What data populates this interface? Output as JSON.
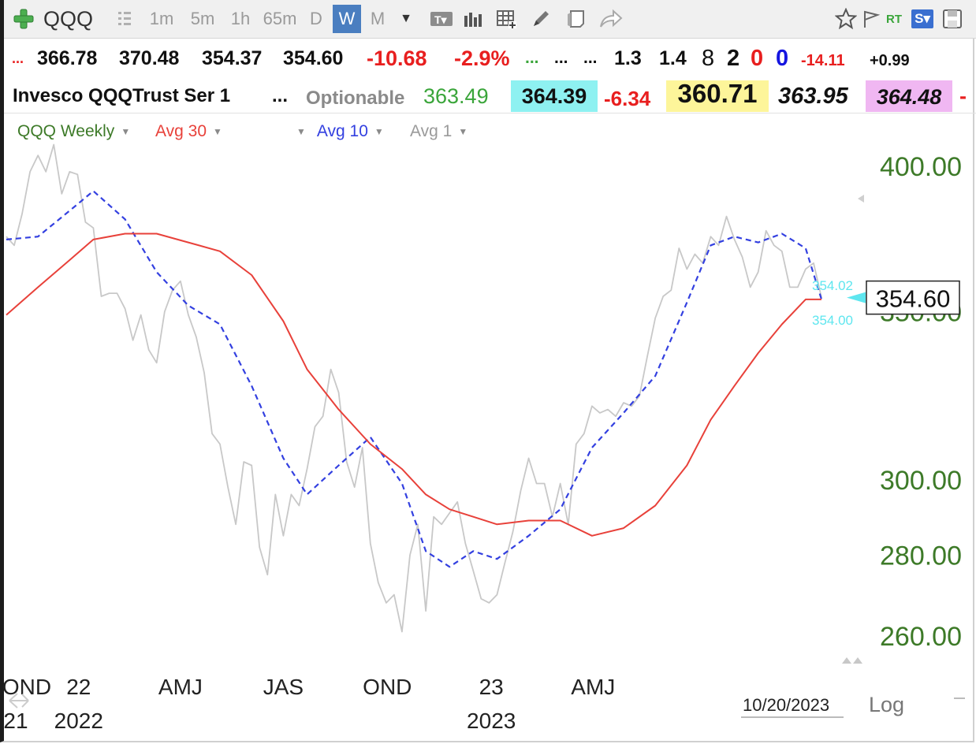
{
  "toolbar": {
    "symbol": "QQQ",
    "timeframes": [
      "1m",
      "5m",
      "1h",
      "65m",
      "D",
      "W",
      "M"
    ],
    "active_timeframe": "W",
    "rt_label": "RT",
    "s_label": "S▾"
  },
  "quote_row": {
    "lead": "...",
    "open": "366.78",
    "high": "370.48",
    "low": "354.37",
    "close": "354.60",
    "change": "-10.68",
    "pct": "-2.9%",
    "dots1": "...",
    "dots2": "...",
    "dots3": "...",
    "v1": "1.3",
    "v2": "1.4",
    "n1": "8",
    "n2": "2",
    "n3": "0",
    "n4": "0",
    "d1": "-14.11",
    "d2": "+0.99"
  },
  "info_row": {
    "name": "Invesco QQQTrust Ser 1",
    "dots": "...",
    "optionable": "Optionable",
    "p1": "363.49",
    "p2": "364.39",
    "p3": "-6.34",
    "p4": "360.71",
    "p5": "363.95",
    "p6": "364.48",
    "p7": "-"
  },
  "legend": {
    "weekly": "QQQ Weekly",
    "avg30": "Avg 30",
    "avg10": "Avg 10",
    "avg1": "Avg 1"
  },
  "colors": {
    "price": "#c8c8c8",
    "avg30": "#e8413a",
    "avg10": "#3340e0",
    "axis_green": "#3d7a28",
    "red": "#e81f1f",
    "cyan_bg": "#8ef1f1",
    "yellow_bg": "#fdf59a",
    "pink_bg": "#f0b7f2"
  },
  "chart_data": {
    "type": "line",
    "y_ticks": [
      "400.00",
      "350.00",
      "300.00",
      "280.00",
      "260.00"
    ],
    "y_tick_values": [
      400,
      350,
      300,
      280,
      260
    ],
    "ylim": [
      252,
      415
    ],
    "scale": "log",
    "x_labels_top": [
      "OND",
      "22",
      "AMJ",
      "JAS",
      "OND",
      "23",
      "AMJ"
    ],
    "x_labels_bottom": [
      "21",
      "2022",
      "2023"
    ],
    "x_tick_dates": [
      "2021-11-01",
      "2022-01-01",
      "2022-04-01",
      "2022-07-01",
      "2022-10-01",
      "2023-01-01",
      "2023-04-01"
    ],
    "date_footer": "10/20/2023",
    "log_label": "Log",
    "last_price": "354.60",
    "avg10_marker": "354.02",
    "avg30_marker": "354.00",
    "series": [
      {
        "name": "QQQ Weekly",
        "values": [
          [
            "2021-10-29",
            375
          ],
          [
            "2021-11-05",
            372
          ],
          [
            "2021-11-12",
            383
          ],
          [
            "2021-11-19",
            398
          ],
          [
            "2021-11-26",
            404
          ],
          [
            "2021-12-03",
            398
          ],
          [
            "2021-12-10",
            408
          ],
          [
            "2021-12-17",
            390
          ],
          [
            "2021-12-24",
            398
          ],
          [
            "2021-12-31",
            397
          ],
          [
            "2022-01-07",
            380
          ],
          [
            "2022-01-14",
            378
          ],
          [
            "2022-01-21",
            355
          ],
          [
            "2022-01-28",
            356
          ],
          [
            "2022-02-04",
            356
          ],
          [
            "2022-02-11",
            351
          ],
          [
            "2022-02-18",
            341
          ],
          [
            "2022-02-25",
            349
          ],
          [
            "2022-03-04",
            338
          ],
          [
            "2022-03-11",
            334
          ],
          [
            "2022-03-18",
            350
          ],
          [
            "2022-03-25",
            357
          ],
          [
            "2022-04-01",
            360
          ],
          [
            "2022-04-08",
            349
          ],
          [
            "2022-04-15",
            342
          ],
          [
            "2022-04-22",
            331
          ],
          [
            "2022-04-29",
            313
          ],
          [
            "2022-05-06",
            310
          ],
          [
            "2022-05-13",
            298
          ],
          [
            "2022-05-20",
            288
          ],
          [
            "2022-05-27",
            305
          ],
          [
            "2022-06-03",
            304
          ],
          [
            "2022-06-10",
            282
          ],
          [
            "2022-06-17",
            275
          ],
          [
            "2022-06-24",
            296
          ],
          [
            "2022-07-01",
            285
          ],
          [
            "2022-07-08",
            296
          ],
          [
            "2022-07-15",
            293
          ],
          [
            "2022-07-22",
            303
          ],
          [
            "2022-07-29",
            315
          ],
          [
            "2022-08-05",
            318
          ],
          [
            "2022-08-12",
            332
          ],
          [
            "2022-08-19",
            325
          ],
          [
            "2022-08-26",
            305
          ],
          [
            "2022-09-02",
            298
          ],
          [
            "2022-09-09",
            309
          ],
          [
            "2022-09-16",
            283
          ],
          [
            "2022-09-23",
            273
          ],
          [
            "2022-09-30",
            268
          ],
          [
            "2022-10-07",
            270
          ],
          [
            "2022-10-14",
            261
          ],
          [
            "2022-10-21",
            280
          ],
          [
            "2022-10-28",
            288
          ],
          [
            "2022-11-04",
            266
          ],
          [
            "2022-11-11",
            290
          ],
          [
            "2022-11-18",
            288
          ],
          [
            "2022-11-25",
            291
          ],
          [
            "2022-12-02",
            294
          ],
          [
            "2022-12-09",
            283
          ],
          [
            "2022-12-16",
            276
          ],
          [
            "2022-12-23",
            269
          ],
          [
            "2022-12-30",
            268
          ],
          [
            "2023-01-06",
            270
          ],
          [
            "2023-01-13",
            278
          ],
          [
            "2023-01-20",
            286
          ],
          [
            "2023-01-27",
            297
          ],
          [
            "2023-02-03",
            306
          ],
          [
            "2023-02-10",
            299
          ],
          [
            "2023-02-17",
            299
          ],
          [
            "2023-02-24",
            290
          ],
          [
            "2023-03-03",
            299
          ],
          [
            "2023-03-10",
            288
          ],
          [
            "2023-03-17",
            310
          ],
          [
            "2023-03-24",
            313
          ],
          [
            "2023-03-31",
            321
          ],
          [
            "2023-04-07",
            319
          ],
          [
            "2023-04-14",
            320
          ],
          [
            "2023-04-21",
            318
          ],
          [
            "2023-04-28",
            322
          ],
          [
            "2023-05-05",
            321
          ],
          [
            "2023-05-12",
            324
          ],
          [
            "2023-05-19",
            336
          ],
          [
            "2023-05-26",
            348
          ],
          [
            "2023-06-02",
            355
          ],
          [
            "2023-06-09",
            357
          ],
          [
            "2023-06-16",
            371
          ],
          [
            "2023-06-23",
            364
          ],
          [
            "2023-06-30",
            369
          ],
          [
            "2023-07-07",
            366
          ],
          [
            "2023-07-14",
            375
          ],
          [
            "2023-07-21",
            372
          ],
          [
            "2023-07-28",
            382
          ],
          [
            "2023-08-04",
            374
          ],
          [
            "2023-08-11",
            368
          ],
          [
            "2023-08-18",
            358
          ],
          [
            "2023-08-25",
            363
          ],
          [
            "2023-09-01",
            377
          ],
          [
            "2023-09-08",
            372
          ],
          [
            "2023-09-15",
            370
          ],
          [
            "2023-09-22",
            358
          ],
          [
            "2023-09-29",
            358
          ],
          [
            "2023-10-06",
            364
          ],
          [
            "2023-10-13",
            366
          ],
          [
            "2023-10-20",
            354.6
          ]
        ]
      },
      {
        "name": "Avg 10",
        "values": [
          [
            "2021-10-29",
            374
          ],
          [
            "2021-11-26",
            375
          ],
          [
            "2021-12-24",
            384
          ],
          [
            "2022-01-14",
            391
          ],
          [
            "2022-02-11",
            381
          ],
          [
            "2022-03-11",
            363
          ],
          [
            "2022-04-08",
            352
          ],
          [
            "2022-05-06",
            346
          ],
          [
            "2022-06-03",
            327
          ],
          [
            "2022-07-01",
            306
          ],
          [
            "2022-07-22",
            296
          ],
          [
            "2022-08-19",
            304
          ],
          [
            "2022-09-16",
            312
          ],
          [
            "2022-10-14",
            299
          ],
          [
            "2022-11-04",
            281
          ],
          [
            "2022-11-25",
            277
          ],
          [
            "2022-12-16",
            281
          ],
          [
            "2023-01-06",
            279
          ],
          [
            "2023-02-03",
            285
          ],
          [
            "2023-03-03",
            292
          ],
          [
            "2023-03-31",
            309
          ],
          [
            "2023-04-28",
            319
          ],
          [
            "2023-05-26",
            330
          ],
          [
            "2023-06-23",
            353
          ],
          [
            "2023-07-14",
            372
          ],
          [
            "2023-08-04",
            375
          ],
          [
            "2023-08-25",
            373
          ],
          [
            "2023-09-15",
            376
          ],
          [
            "2023-10-06",
            371
          ],
          [
            "2023-10-20",
            354.02
          ]
        ]
      },
      {
        "name": "Avg 30",
        "values": [
          [
            "2021-10-29",
            349
          ],
          [
            "2021-11-26",
            358
          ],
          [
            "2021-12-24",
            367
          ],
          [
            "2022-01-14",
            374
          ],
          [
            "2022-02-11",
            376
          ],
          [
            "2022-03-11",
            376
          ],
          [
            "2022-04-08",
            373
          ],
          [
            "2022-05-06",
            370
          ],
          [
            "2022-06-03",
            362
          ],
          [
            "2022-07-01",
            347
          ],
          [
            "2022-07-22",
            332
          ],
          [
            "2022-08-19",
            320
          ],
          [
            "2022-09-16",
            310
          ],
          [
            "2022-10-14",
            303
          ],
          [
            "2022-11-04",
            296
          ],
          [
            "2022-11-25",
            292
          ],
          [
            "2022-12-16",
            290
          ],
          [
            "2023-01-06",
            288
          ],
          [
            "2023-02-03",
            289
          ],
          [
            "2023-03-03",
            289
          ],
          [
            "2023-03-31",
            285
          ],
          [
            "2023-04-28",
            287
          ],
          [
            "2023-05-26",
            293
          ],
          [
            "2023-06-23",
            304
          ],
          [
            "2023-07-14",
            317
          ],
          [
            "2023-08-04",
            327
          ],
          [
            "2023-08-25",
            337
          ],
          [
            "2023-09-15",
            346
          ],
          [
            "2023-10-06",
            354
          ],
          [
            "2023-10-20",
            354.0
          ]
        ]
      }
    ]
  }
}
